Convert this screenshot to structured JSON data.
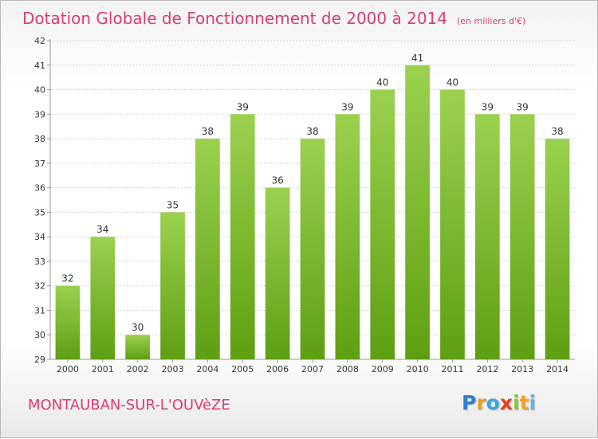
{
  "title": "Dotation Globale de Fonctionnement de 2000 à 2014",
  "unit": "(en milliers d'€)",
  "commune": "MONTAUBAN-SUR-L'OUVèZE",
  "logo": {
    "letters": [
      {
        "ch": "P",
        "color": "#2f7fd0"
      },
      {
        "ch": "r",
        "color": "#e8a020"
      },
      {
        "ch": "o",
        "color": "#3aa7e0"
      },
      {
        "ch": "x",
        "color": "#e8421d"
      },
      {
        "ch": "i",
        "color": "#8cc63e"
      },
      {
        "ch": "t",
        "color": "#f0a428"
      },
      {
        "ch": "i",
        "color": "#5cb6e8"
      }
    ]
  },
  "colors": {
    "bar_light": "#9bd14f",
    "bar_dark": "#5e9f12",
    "grid": "#cfcfcf",
    "title": "#d6406f"
  },
  "chart_data": {
    "type": "bar",
    "categories": [
      "2000",
      "2001",
      "2002",
      "2003",
      "2004",
      "2005",
      "2006",
      "2007",
      "2008",
      "2009",
      "2010",
      "2011",
      "2012",
      "2013",
      "2014"
    ],
    "values": [
      32,
      34,
      30,
      35,
      38,
      39,
      36,
      38,
      39,
      40,
      41,
      40,
      39,
      39,
      38
    ],
    "ylim": [
      29,
      42
    ],
    "yticks": [
      29,
      30,
      31,
      32,
      33,
      34,
      35,
      36,
      37,
      38,
      39,
      40,
      41,
      42
    ],
    "grid": true,
    "data_labels": true
  }
}
